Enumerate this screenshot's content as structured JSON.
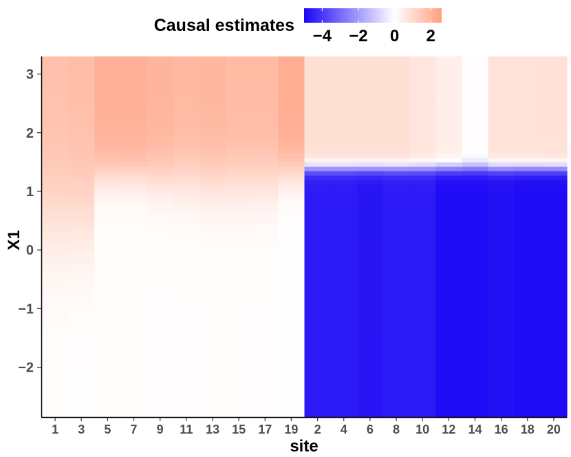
{
  "chart_data": {
    "type": "heatmap",
    "title": "",
    "xlabel": "site",
    "ylabel": "X1",
    "legend": {
      "title": "Causal estimates",
      "placement": "top",
      "ticks": [
        "−4",
        "−2",
        "0",
        "2"
      ],
      "tick_values": [
        -4,
        -2,
        0,
        2
      ],
      "range": [
        -5.0,
        2.6
      ],
      "colors": {
        "low": "#1a06f5",
        "mid": "#ffffff",
        "high": "#ff9f7f"
      }
    },
    "x": {
      "categories": [
        "1",
        "3",
        "5",
        "7",
        "9",
        "11",
        "13",
        "15",
        "17",
        "19",
        "2",
        "4",
        "6",
        "8",
        "10",
        "12",
        "14",
        "16",
        "18",
        "20"
      ],
      "tick_labels": [
        "1",
        "3",
        "5",
        "7",
        "9",
        "11",
        "13",
        "15",
        "17",
        "19",
        "2",
        "4",
        "6",
        "8",
        "10",
        "12",
        "14",
        "16",
        "18",
        "20"
      ]
    },
    "y": {
      "ylim": [
        -2.85,
        3.3
      ],
      "ticks": [
        -2,
        -1,
        0,
        1,
        2,
        3
      ],
      "tick_labels": [
        "−2",
        "−1",
        "0",
        "1",
        "2",
        "3"
      ],
      "row_step": 0.075
    },
    "series": [
      {
        "site": "1",
        "low": 0.05,
        "high": 1.7,
        "threshold": 0.6,
        "transition": 0.55
      },
      {
        "site": "3",
        "low": 0.02,
        "high": 1.8,
        "threshold": 0.65,
        "transition": 0.55
      },
      {
        "site": "5",
        "low": 0.06,
        "high": 2.1,
        "threshold": 1.3,
        "transition": 0.2
      },
      {
        "site": "7",
        "low": 0.07,
        "high": 2.1,
        "threshold": 1.3,
        "transition": 0.2
      },
      {
        "site": "9",
        "low": 0.05,
        "high": 2.0,
        "threshold": 1.25,
        "transition": 0.25
      },
      {
        "site": "11",
        "low": 0.05,
        "high": 1.9,
        "threshold": 1.25,
        "transition": 0.3
      },
      {
        "site": "13",
        "low": 0.06,
        "high": 1.95,
        "threshold": 1.2,
        "transition": 0.3
      },
      {
        "site": "15",
        "low": 0.06,
        "high": 1.85,
        "threshold": 1.2,
        "transition": 0.3
      },
      {
        "site": "17",
        "low": 0.05,
        "high": 1.85,
        "threshold": 1.2,
        "transition": 0.3
      },
      {
        "site": "19",
        "low": 0.02,
        "high": 2.2,
        "threshold": 1.35,
        "transition": 0.2
      },
      {
        "site": "2",
        "low": -4.6,
        "high": 0.85,
        "threshold": 1.4,
        "transition": 0.06
      },
      {
        "site": "4",
        "low": -4.6,
        "high": 0.85,
        "threshold": 1.4,
        "transition": 0.06
      },
      {
        "site": "6",
        "low": -4.7,
        "high": 0.85,
        "threshold": 1.4,
        "transition": 0.06
      },
      {
        "site": "8",
        "low": -4.6,
        "high": 0.85,
        "threshold": 1.4,
        "transition": 0.06
      },
      {
        "site": "10",
        "low": -4.6,
        "high": 0.7,
        "threshold": 1.4,
        "transition": 0.06
      },
      {
        "site": "12",
        "low": -4.9,
        "high": 0.45,
        "threshold": 1.4,
        "transition": 0.06
      },
      {
        "site": "14",
        "low": -4.9,
        "high": 0.05,
        "threshold": 1.4,
        "transition": 0.06
      },
      {
        "site": "16",
        "low": -4.8,
        "high": 0.75,
        "threshold": 1.4,
        "transition": 0.06
      },
      {
        "site": "18",
        "low": -4.9,
        "high": 0.75,
        "threshold": 1.4,
        "transition": 0.06
      },
      {
        "site": "20",
        "low": -4.9,
        "high": 0.8,
        "threshold": 1.4,
        "transition": 0.06
      }
    ],
    "grid": false
  }
}
